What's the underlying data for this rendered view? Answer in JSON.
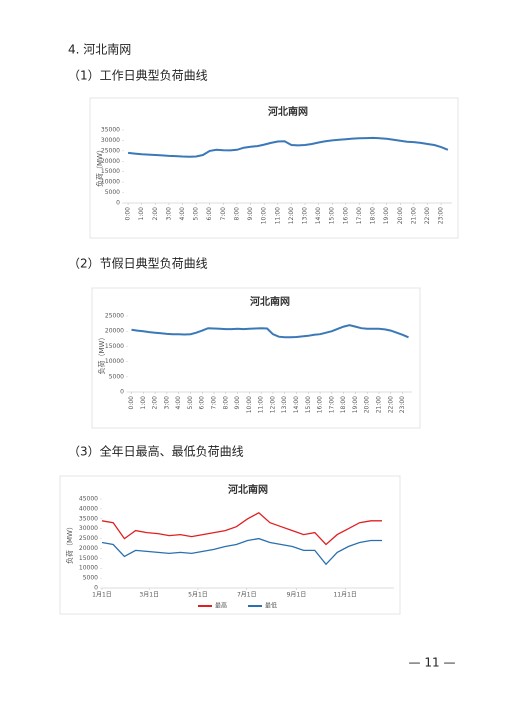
{
  "heading": "4. 河北南网",
  "sections": [
    {
      "heading": "（1）工作日典型负荷曲线"
    },
    {
      "heading": "（2）节假日典型负荷曲线"
    },
    {
      "heading": "（3）全年日最高、最低负荷曲线"
    }
  ],
  "page_number": "— 11 —",
  "chart_data": [
    {
      "type": "line",
      "title": "河北南网",
      "y_label": "负荷（MW）",
      "color": "#3a78b8",
      "x": [
        0,
        0.5,
        1,
        1.5,
        2,
        2.5,
        3,
        3.5,
        4,
        4.5,
        5,
        5.5,
        6,
        6.5,
        7,
        7.5,
        8,
        8.5,
        9,
        9.5,
        10,
        10.5,
        11,
        11.5,
        12,
        12.5,
        13,
        13.5,
        14,
        14.5,
        15,
        15.5,
        16,
        16.5,
        17,
        17.5,
        18,
        18.5,
        19,
        19.5,
        20,
        20.5,
        21,
        21.5,
        22,
        22.5,
        23,
        23.5
      ],
      "values": [
        24000,
        23700,
        23400,
        23200,
        23000,
        22800,
        22600,
        22500,
        22300,
        22200,
        22300,
        23000,
        25000,
        25500,
        25300,
        25200,
        25500,
        26500,
        27000,
        27300,
        28000,
        28800,
        29500,
        29600,
        27800,
        27600,
        27800,
        28300,
        29000,
        29600,
        30000,
        30300,
        30600,
        30900,
        31000,
        31100,
        31200,
        31000,
        30800,
        30300,
        29800,
        29400,
        29200,
        28800,
        28300,
        27800,
        26800,
        25500
      ],
      "xlim": [
        -0.3,
        23.8
      ],
      "ylim": [
        0,
        35000
      ],
      "yticks": [
        0,
        5000,
        10000,
        15000,
        20000,
        25000,
        30000,
        35000
      ],
      "xticks": [
        {
          "value": 0,
          "label": "0:00"
        },
        {
          "value": 1,
          "label": "1:00"
        },
        {
          "value": 2,
          "label": "2:00"
        },
        {
          "value": 3,
          "label": "3:00"
        },
        {
          "value": 4,
          "label": "4:00"
        },
        {
          "value": 5,
          "label": "5:00"
        },
        {
          "value": 6,
          "label": "6:00"
        },
        {
          "value": 7,
          "label": "7:00"
        },
        {
          "value": 8,
          "label": "8:00"
        },
        {
          "value": 9,
          "label": "9:00"
        },
        {
          "value": 10,
          "label": "10:00"
        },
        {
          "value": 11,
          "label": "11:00"
        },
        {
          "value": 12,
          "label": "12:00"
        },
        {
          "value": 13,
          "label": "13:00"
        },
        {
          "value": 14,
          "label": "14:00"
        },
        {
          "value": 15,
          "label": "15:00"
        },
        {
          "value": 16,
          "label": "16:00"
        },
        {
          "value": 17,
          "label": "17:00"
        },
        {
          "value": 18,
          "label": "18:00"
        },
        {
          "value": 19,
          "label": "19:00"
        },
        {
          "value": 20,
          "label": "20:00"
        },
        {
          "value": 21,
          "label": "21:00"
        },
        {
          "value": 22,
          "label": "22:00"
        },
        {
          "value": 23,
          "label": "23:00"
        }
      ]
    },
    {
      "type": "line",
      "title": "河北南网",
      "y_label": "负荷（MW）",
      "color": "#3a78b8",
      "x": [
        0,
        0.5,
        1,
        1.5,
        2,
        2.5,
        3,
        3.5,
        4,
        4.5,
        5,
        5.5,
        6,
        6.5,
        7,
        7.5,
        8,
        8.5,
        9,
        9.5,
        10,
        10.5,
        11,
        11.5,
        12,
        12.5,
        13,
        13.5,
        14,
        14.5,
        15,
        15.5,
        16,
        16.5,
        17,
        17.5,
        18,
        18.5,
        19,
        19.5,
        20,
        20.5,
        21,
        21.5,
        22,
        22.5,
        23,
        23.5
      ],
      "values": [
        20500,
        20200,
        20000,
        19700,
        19500,
        19300,
        19100,
        19000,
        19000,
        18900,
        19000,
        19500,
        20200,
        21000,
        20900,
        20800,
        20700,
        20700,
        20800,
        20700,
        20800,
        20900,
        21000,
        20900,
        19000,
        18200,
        18000,
        18000,
        18100,
        18300,
        18500,
        18800,
        19000,
        19500,
        20000,
        20800,
        21500,
        22000,
        21500,
        21000,
        20800,
        20800,
        20800,
        20600,
        20200,
        19500,
        18800,
        18000
      ],
      "xlim": [
        -0.3,
        23.8
      ],
      "ylim": [
        0,
        25000
      ],
      "yticks": [
        0,
        5000,
        10000,
        15000,
        20000,
        25000
      ],
      "xticks": [
        {
          "value": 0,
          "label": "0:00"
        },
        {
          "value": 1,
          "label": "1:00"
        },
        {
          "value": 2,
          "label": "2:00"
        },
        {
          "value": 3,
          "label": "3:00"
        },
        {
          "value": 4,
          "label": "4:00"
        },
        {
          "value": 5,
          "label": "5:00"
        },
        {
          "value": 6,
          "label": "6:00"
        },
        {
          "value": 7,
          "label": "7:00"
        },
        {
          "value": 8,
          "label": "8:00"
        },
        {
          "value": 9,
          "label": "9:00"
        },
        {
          "value": 10,
          "label": "10:00"
        },
        {
          "value": 11,
          "label": "11:00"
        },
        {
          "value": 12,
          "label": "12:00"
        },
        {
          "value": 13,
          "label": "13:00"
        },
        {
          "value": 14,
          "label": "14:00"
        },
        {
          "value": 15,
          "label": "15:00"
        },
        {
          "value": 16,
          "label": "16:00"
        },
        {
          "value": 17,
          "label": "17:00"
        },
        {
          "value": 18,
          "label": "18:00"
        },
        {
          "value": 19,
          "label": "19:00"
        },
        {
          "value": 20,
          "label": "20:00"
        },
        {
          "value": 21,
          "label": "21:00"
        },
        {
          "value": 22,
          "label": "22:00"
        },
        {
          "value": 23,
          "label": "23:00"
        }
      ]
    },
    {
      "type": "line",
      "title": "河北南网",
      "y_label": "负荷（MW）",
      "legend": "bottom",
      "x": [
        0,
        14,
        28,
        42,
        56,
        70,
        84,
        98,
        112,
        126,
        140,
        154,
        168,
        182,
        196,
        210,
        224,
        238,
        252,
        266,
        280,
        294,
        308,
        322,
        336,
        350
      ],
      "series": [
        {
          "name": "最高",
          "color": "#e02020",
          "values": [
            34000,
            33000,
            25000,
            29000,
            28000,
            27500,
            26500,
            27000,
            26000,
            27000,
            28000,
            29000,
            31000,
            35000,
            38000,
            33000,
            31000,
            29000,
            27000,
            28000,
            22000,
            27000,
            30000,
            33000,
            34000,
            34000
          ]
        },
        {
          "name": "最低",
          "color": "#2a70b0",
          "values": [
            23000,
            22000,
            16000,
            19000,
            18500,
            18000,
            17500,
            18000,
            17500,
            18500,
            19500,
            21000,
            22000,
            24000,
            25000,
            23000,
            22000,
            21000,
            19000,
            19000,
            12000,
            18000,
            21000,
            23000,
            24000,
            24000
          ]
        }
      ],
      "xlim": [
        0,
        365
      ],
      "ylim": [
        0,
        45000
      ],
      "yticks": [
        0,
        5000,
        10000,
        15000,
        20000,
        25000,
        30000,
        35000,
        40000,
        45000
      ],
      "xticks": [
        {
          "value": 0,
          "label": "1月1日"
        },
        {
          "value": 59,
          "label": "3月1日"
        },
        {
          "value": 120,
          "label": "5月1日"
        },
        {
          "value": 181,
          "label": "7月1日"
        },
        {
          "value": 243,
          "label": "9月1日"
        },
        {
          "value": 304,
          "label": "11月1日"
        }
      ]
    }
  ]
}
